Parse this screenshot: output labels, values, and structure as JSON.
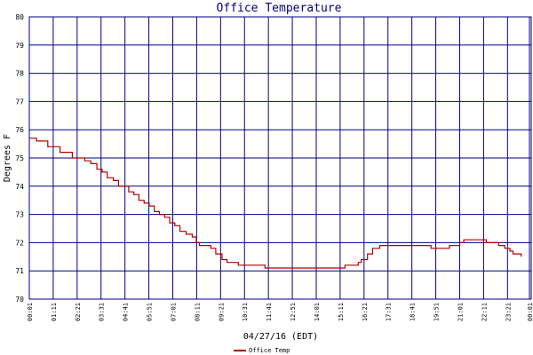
{
  "chart_data": {
    "type": "line",
    "title": "Office Temperature",
    "xlabel": "04/27/16 (EDT)",
    "ylabel": "Degrees F",
    "ylim": [
      70,
      80
    ],
    "yticks": [
      "70",
      "71",
      "72",
      "73",
      "74",
      "75",
      "76",
      "77",
      "78",
      "79",
      "80"
    ],
    "xticks": [
      "00:01",
      "01:11",
      "02:21",
      "03:31",
      "04:41",
      "05:51",
      "07:01",
      "08:11",
      "09:21",
      "10:31",
      "11:41",
      "12:51",
      "14:01",
      "15:11",
      "16:21",
      "17:31",
      "18:41",
      "19:51",
      "21:01",
      "22:11",
      "23:21",
      "00:01"
    ],
    "grid": true,
    "legend_position": "bottom-left",
    "colors": {
      "grid": "#000080",
      "line": "#b00000",
      "title": "#000080"
    },
    "series": [
      {
        "name": "Office Temp",
        "x": [
          0.0,
          0.2,
          0.35,
          0.6,
          0.9,
          1.2,
          1.5,
          1.8,
          2.1,
          2.4,
          2.7,
          3.0,
          3.3,
          3.55,
          3.8,
          4.1,
          4.35,
          4.6,
          4.85,
          5.1,
          5.35,
          5.6,
          5.85,
          6.1,
          6.35,
          6.6,
          6.85,
          7.1,
          7.35,
          7.65,
          7.95,
          8.15,
          8.3,
          8.6,
          8.85,
          9.1,
          9.4,
          9.65,
          10.2,
          10.5,
          11.0,
          11.5,
          12.0,
          13.0,
          14.0,
          15.0,
          15.4,
          15.8,
          16.05,
          16.2,
          16.5,
          16.75,
          16.9,
          17.1,
          17.4,
          17.9,
          18.5,
          19.1,
          19.6,
          20.0,
          20.5,
          21.0,
          21.2,
          21.6,
          22.0,
          22.3,
          22.6,
          22.9,
          23.2,
          23.45,
          23.6,
          23.75,
          23.9,
          24.0
        ],
        "values": [
          75.7,
          75.7,
          75.6,
          75.6,
          75.4,
          75.4,
          75.2,
          75.2,
          75.0,
          75.0,
          74.9,
          74.8,
          74.6,
          74.5,
          74.3,
          74.2,
          74.0,
          74.0,
          73.8,
          73.7,
          73.5,
          73.4,
          73.3,
          73.1,
          73.0,
          72.9,
          72.7,
          72.6,
          72.4,
          72.3,
          72.2,
          72.0,
          71.9,
          71.9,
          71.8,
          71.6,
          71.4,
          71.3,
          71.2,
          71.2,
          71.2,
          71.1,
          71.1,
          71.1,
          71.1,
          71.1,
          71.2,
          71.2,
          71.3,
          71.4,
          71.6,
          71.8,
          71.8,
          71.9,
          71.9,
          71.9,
          71.9,
          71.9,
          71.8,
          71.8,
          71.9,
          72.0,
          72.1,
          72.1,
          72.1,
          72.0,
          72.0,
          71.9,
          71.8,
          71.7,
          71.6,
          71.6,
          71.6,
          71.5
        ]
      }
    ]
  }
}
